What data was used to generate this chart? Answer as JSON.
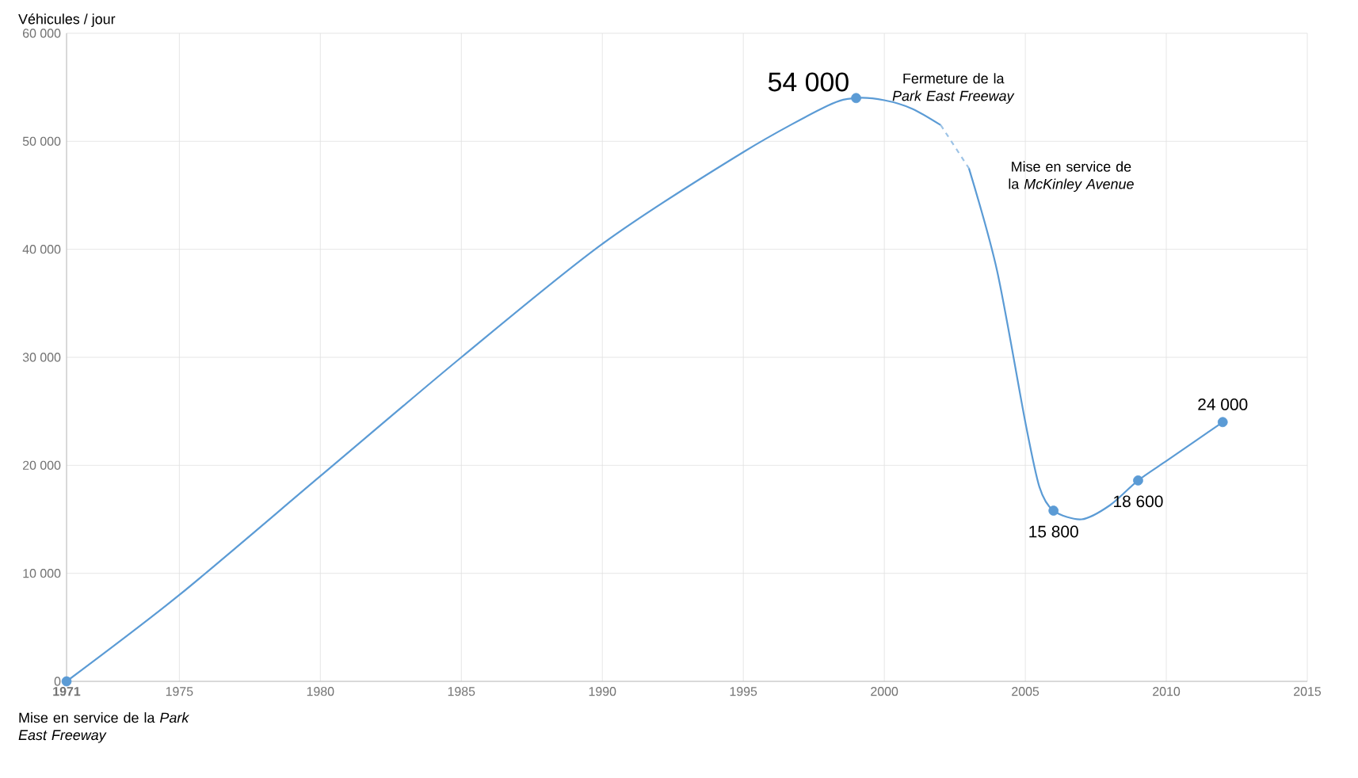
{
  "chart_data": {
    "type": "line",
    "ylabel": "Véhicules / jour",
    "xlim": [
      1971,
      2015
    ],
    "ylim": [
      0,
      60000
    ],
    "xticks": [
      {
        "value": 1971,
        "label": "**1971**"
      },
      1975,
      1980,
      1985,
      1990,
      1995,
      2000,
      2005,
      2010,
      2015
    ],
    "yticks": [
      {
        "value": 0,
        "label": "0"
      },
      {
        "value": 10000,
        "label": "10 000"
      },
      {
        "value": 20000,
        "label": "20 000"
      },
      {
        "value": 30000,
        "label": "30 000"
      },
      {
        "value": 40000,
        "label": "40 000"
      },
      {
        "value": 50000,
        "label": "50 000"
      },
      {
        "value": 60000,
        "label": "60 000"
      }
    ],
    "grid": true,
    "series": [
      {
        "color": "#5b9bd5",
        "line_style": "solid",
        "x": [
          1971,
          1975,
          1980,
          1985,
          1990,
          1995,
          1998,
          1999,
          2000,
          2001,
          2002
        ],
        "values": [
          0,
          8000,
          19000,
          30000,
          40500,
          49000,
          53300,
          54000,
          53800,
          53000,
          51500
        ]
      },
      {
        "color": "#9dc3e6",
        "line_style": "dashed",
        "x": [
          2002,
          2003
        ],
        "values": [
          51500,
          47500
        ]
      },
      {
        "color": "#5b9bd5",
        "line_style": "solid",
        "x": [
          2003,
          2004,
          2005,
          2005.5,
          2006,
          2007,
          2008,
          2009,
          2010,
          2011,
          2012
        ],
        "values": [
          47500,
          38000,
          24000,
          18000,
          15800,
          15000,
          16300,
          18600,
          20400,
          22200,
          24000
        ]
      },
      {
        "type": "scatter",
        "color": "#5b9bd5",
        "x": [
          1971,
          1999,
          2006,
          2009,
          2012
        ],
        "values": [
          0,
          54000,
          15800,
          18600,
          24000
        ],
        "value_labels": [
          null,
          "54 000",
          "15 800",
          "18 600",
          "24 000"
        ]
      }
    ],
    "annotations": [
      {
        "text": "Fermeture de la *Park East Freeway*",
        "x": 2002,
        "y": 51500
      },
      {
        "text": "Mise en service de la *McKinley Avenue*",
        "x": 2003,
        "y": 47500
      },
      "Mise en service de la *Park East Freeway*"
    ]
  }
}
